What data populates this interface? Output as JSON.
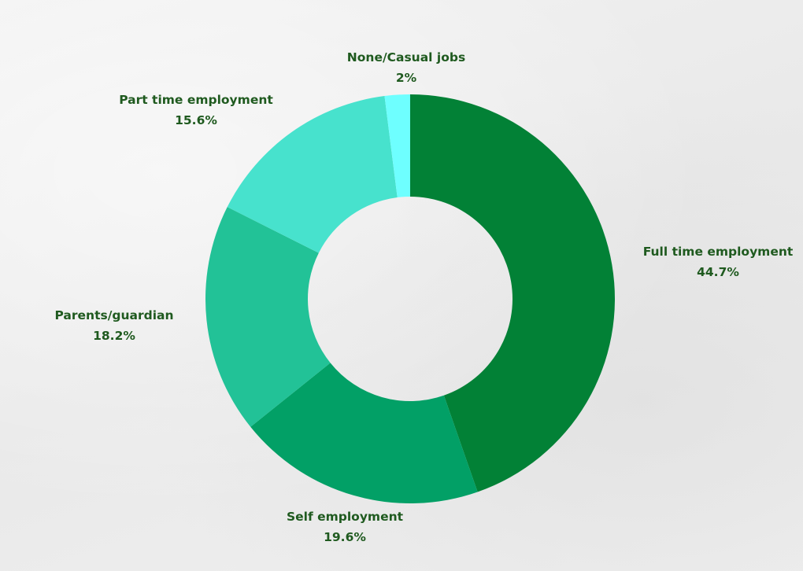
{
  "chart_data": {
    "type": "pie",
    "variant": "donut",
    "title": "",
    "legend": "none",
    "label_color": "#1f5a1f",
    "slices": [
      {
        "name": "Full time employment",
        "label": "Full time employment",
        "value_text": "44.7%",
        "value": 44.7,
        "color": "#028136"
      },
      {
        "name": "Self employment",
        "label": "Self employment",
        "value_text": "19.6%",
        "value": 19.6,
        "color": "#02a066"
      },
      {
        "name": "Parents/guardian",
        "label": "Parents/guardian",
        "value_text": "18.2%",
        "value": 18.2,
        "color": "#22c297"
      },
      {
        "name": "Part time employment",
        "label": "Part time employment",
        "value_text": "15.6%",
        "value": 15.6,
        "color": "#47e2cd"
      },
      {
        "name": "None/Casual jobs",
        "label": "None/Casual jobs",
        "value_text": "2%",
        "value": 2,
        "color": "#6effff"
      }
    ]
  }
}
